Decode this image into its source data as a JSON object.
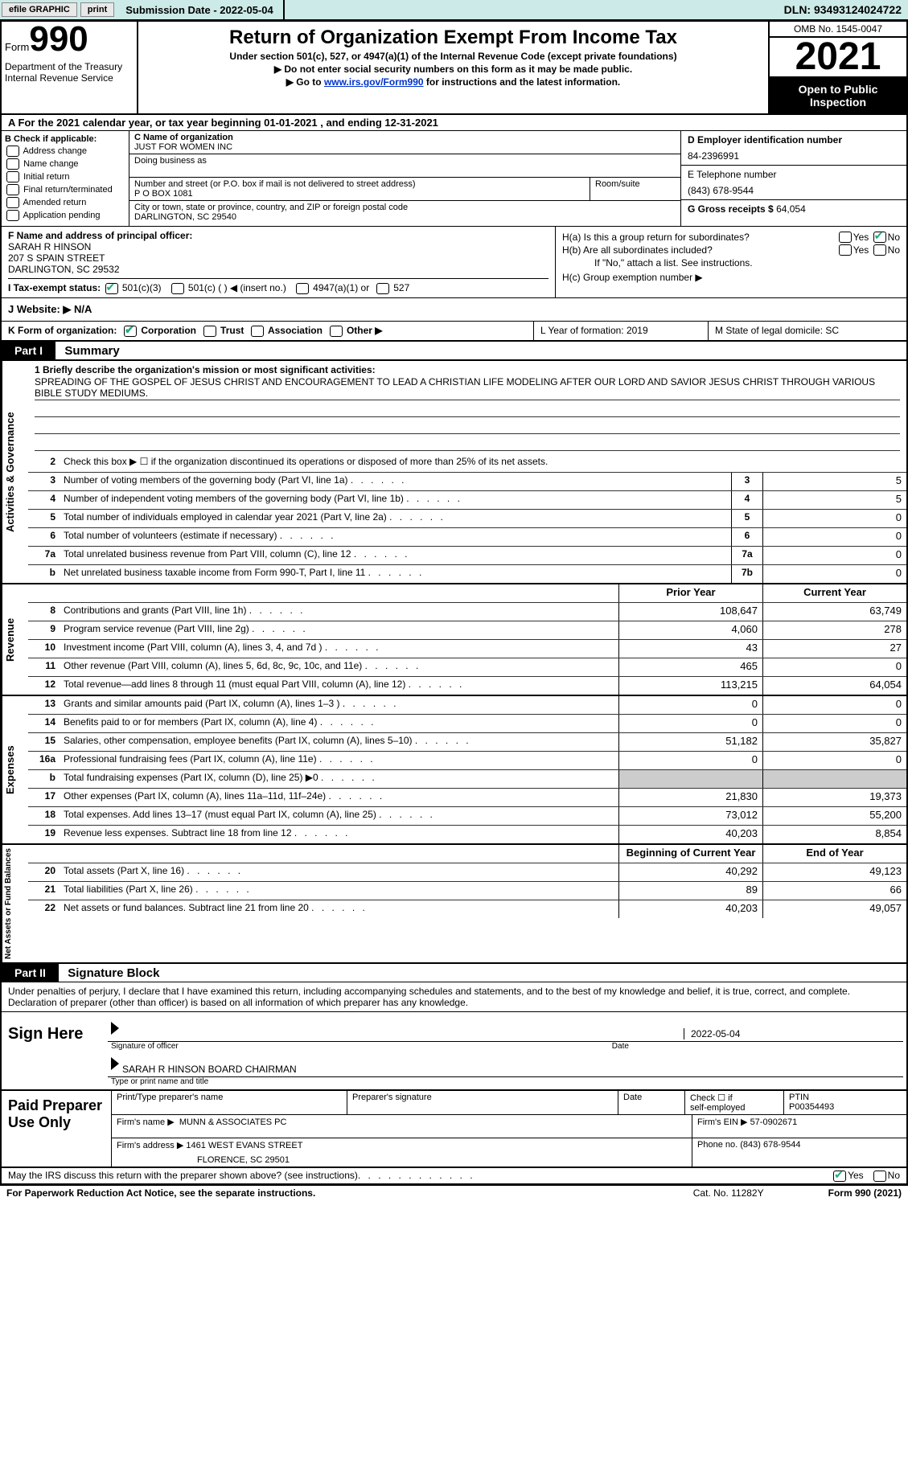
{
  "top_bar": {
    "efile": "efile GRAPHIC",
    "print": "print",
    "submission": "Submission Date - 2022-05-04",
    "dln": "DLN: 93493124024722"
  },
  "header": {
    "form_label": "Form",
    "form_num": "990",
    "dept": "Department of the Treasury\nInternal Revenue Service",
    "title": "Return of Organization Exempt From Income Tax",
    "subtitle": "Under section 501(c), 527, or 4947(a)(1) of the Internal Revenue Code (except private foundations)",
    "note1": "▶ Do not enter social security numbers on this form as it may be made public.",
    "note2_pre": "▶ Go to ",
    "note2_link": "www.irs.gov/Form990",
    "note2_post": " for instructions and the latest information.",
    "omb": "OMB No. 1545-0047",
    "year": "2021",
    "open": "Open to Public Inspection"
  },
  "row_a": "A For the 2021 calendar year, or tax year beginning 01-01-2021    , and ending 12-31-2021",
  "col_b": {
    "label": "B Check if applicable:",
    "opts": [
      "Address change",
      "Name change",
      "Initial return",
      "Final return/terminated",
      "Amended return",
      "Application pending"
    ]
  },
  "col_c": {
    "name_label": "C Name of organization",
    "name": "JUST FOR WOMEN INC",
    "dba_label": "Doing business as",
    "addr_label": "Number and street (or P.O. box if mail is not delivered to street address)",
    "room_label": "Room/suite",
    "addr": "P O BOX 1081",
    "city_label": "City or town, state or province, country, and ZIP or foreign postal code",
    "city": "DARLINGTON, SC  29540"
  },
  "col_de": {
    "d_label": "D Employer identification number",
    "ein": "84-2396991",
    "e_label": "E Telephone number",
    "phone": "(843) 678-9544",
    "g_label": "G Gross receipts $",
    "gross": "64,054"
  },
  "col_f": {
    "label": "F Name and address of principal officer:",
    "name": "SARAH R HINSON",
    "addr1": "207 S SPAIN STREET",
    "addr2": "DARLINGTON, SC  29532"
  },
  "col_h": {
    "ha_label": "H(a)  Is this a group return for subordinates?",
    "hb_label": "H(b)  Are all subordinates included?",
    "hb_note": "If \"No,\" attach a list. See instructions.",
    "hc_label": "H(c)  Group exemption number ▶",
    "yes": "Yes",
    "no": "No"
  },
  "row_i": {
    "label": "I  Tax-exempt status:",
    "o1": "501(c)(3)",
    "o2": "501(c) (   ) ◀ (insert no.)",
    "o3": "4947(a)(1) or",
    "o4": "527"
  },
  "row_j": "J  Website: ▶    N/A",
  "row_k": "K Form of organization:",
  "row_k_opts": [
    "Corporation",
    "Trust",
    "Association",
    "Other ▶"
  ],
  "row_l": "L Year of formation: 2019",
  "row_m": "M State of legal domicile: SC",
  "parts": {
    "p1": "Part I",
    "p1_title": "Summary",
    "p2": "Part II",
    "p2_title": "Signature Block"
  },
  "mission": {
    "label": "1  Briefly describe the organization's mission or most significant activities:",
    "text": "SPREADING OF THE GOSPEL OF JESUS CHRIST AND ENCOURAGEMENT TO LEAD A CHRISTIAN LIFE MODELING AFTER OUR LORD AND SAVIOR JESUS CHRIST THROUGH VARIOUS BIBLE STUDY MEDIUMS."
  },
  "side_labels": {
    "gov": "Activities & Governance",
    "rev": "Revenue",
    "exp": "Expenses",
    "net": "Net Assets or Fund Balances"
  },
  "gov_rows": [
    {
      "n": "2",
      "d": "Check this box ▶ ☐  if the organization discontinued its operations or disposed of more than 25% of its net assets."
    },
    {
      "n": "3",
      "d": "Number of voting members of the governing body (Part VI, line 1a)",
      "b": "3",
      "v": "5"
    },
    {
      "n": "4",
      "d": "Number of independent voting members of the governing body (Part VI, line 1b)",
      "b": "4",
      "v": "5"
    },
    {
      "n": "5",
      "d": "Total number of individuals employed in calendar year 2021 (Part V, line 2a)",
      "b": "5",
      "v": "0"
    },
    {
      "n": "6",
      "d": "Total number of volunteers (estimate if necessary)",
      "b": "6",
      "v": "0"
    },
    {
      "n": "7a",
      "d": "Total unrelated business revenue from Part VIII, column (C), line 12",
      "b": "7a",
      "v": "0"
    },
    {
      "n": "b",
      "d": "Net unrelated business taxable income from Form 990-T, Part I, line 11",
      "b": "7b",
      "v": "0"
    }
  ],
  "col_headers": {
    "prior": "Prior Year",
    "current": "Current Year",
    "beg": "Beginning of Current Year",
    "end": "End of Year"
  },
  "rev_rows": [
    {
      "n": "8",
      "d": "Contributions and grants (Part VIII, line 1h)",
      "p": "108,647",
      "c": "63,749"
    },
    {
      "n": "9",
      "d": "Program service revenue (Part VIII, line 2g)",
      "p": "4,060",
      "c": "278"
    },
    {
      "n": "10",
      "d": "Investment income (Part VIII, column (A), lines 3, 4, and 7d )",
      "p": "43",
      "c": "27"
    },
    {
      "n": "11",
      "d": "Other revenue (Part VIII, column (A), lines 5, 6d, 8c, 9c, 10c, and 11e)",
      "p": "465",
      "c": "0"
    },
    {
      "n": "12",
      "d": "Total revenue—add lines 8 through 11 (must equal Part VIII, column (A), line 12)",
      "p": "113,215",
      "c": "64,054"
    }
  ],
  "exp_rows": [
    {
      "n": "13",
      "d": "Grants and similar amounts paid (Part IX, column (A), lines 1–3 )",
      "p": "0",
      "c": "0"
    },
    {
      "n": "14",
      "d": "Benefits paid to or for members (Part IX, column (A), line 4)",
      "p": "0",
      "c": "0"
    },
    {
      "n": "15",
      "d": "Salaries, other compensation, employee benefits (Part IX, column (A), lines 5–10)",
      "p": "51,182",
      "c": "35,827"
    },
    {
      "n": "16a",
      "d": "Professional fundraising fees (Part IX, column (A), line 11e)",
      "p": "0",
      "c": "0"
    },
    {
      "n": "b",
      "d": "Total fundraising expenses (Part IX, column (D), line 25) ▶0",
      "p": "",
      "c": "",
      "shaded": true
    },
    {
      "n": "17",
      "d": "Other expenses (Part IX, column (A), lines 11a–11d, 11f–24e)",
      "p": "21,830",
      "c": "19,373"
    },
    {
      "n": "18",
      "d": "Total expenses. Add lines 13–17 (must equal Part IX, column (A), line 25)",
      "p": "73,012",
      "c": "55,200"
    },
    {
      "n": "19",
      "d": "Revenue less expenses. Subtract line 18 from line 12",
      "p": "40,203",
      "c": "8,854"
    }
  ],
  "net_rows": [
    {
      "n": "20",
      "d": "Total assets (Part X, line 16)",
      "p": "40,292",
      "c": "49,123"
    },
    {
      "n": "21",
      "d": "Total liabilities (Part X, line 26)",
      "p": "89",
      "c": "66"
    },
    {
      "n": "22",
      "d": "Net assets or fund balances. Subtract line 21 from line 20",
      "p": "40,203",
      "c": "49,057"
    }
  ],
  "sig": {
    "declare": "Under penalties of perjury, I declare that I have examined this return, including accompanying schedules and statements, and to the best of my knowledge and belief, it is true, correct, and complete. Declaration of preparer (other than officer) is based on all information of which preparer has any knowledge.",
    "sign_here": "Sign Here",
    "sig_officer": "Signature of officer",
    "date": "2022-05-04",
    "date_lbl": "Date",
    "name_title": "SARAH R HINSON  BOARD CHAIRMAN",
    "type_name": "Type or print name and title"
  },
  "paid": {
    "title": "Paid Preparer Use Only",
    "h1": "Print/Type preparer's name",
    "h2": "Preparer's signature",
    "h3": "Date",
    "h4_a": "Check ☐ if",
    "h4_b": "self-employed",
    "h5": "PTIN",
    "ptin": "P00354493",
    "firm_name_lbl": "Firm's name     ▶",
    "firm_name": "MUNN & ASSOCIATES PC",
    "firm_ein_lbl": "Firm's EIN ▶",
    "firm_ein": "57-0902671",
    "firm_addr_lbl": "Firm's address ▶",
    "firm_addr1": "1461 WEST EVANS STREET",
    "firm_addr2": "FLORENCE, SC  29501",
    "phone_lbl": "Phone no.",
    "phone": "(843) 678-9544"
  },
  "bottom": {
    "discuss": "May the IRS discuss this return with the preparer shown above? (see instructions)",
    "yes": "Yes",
    "no": "No"
  },
  "footer": {
    "left": "For Paperwork Reduction Act Notice, see the separate instructions.",
    "mid": "Cat. No. 11282Y",
    "right": "Form 990 (2021)"
  }
}
